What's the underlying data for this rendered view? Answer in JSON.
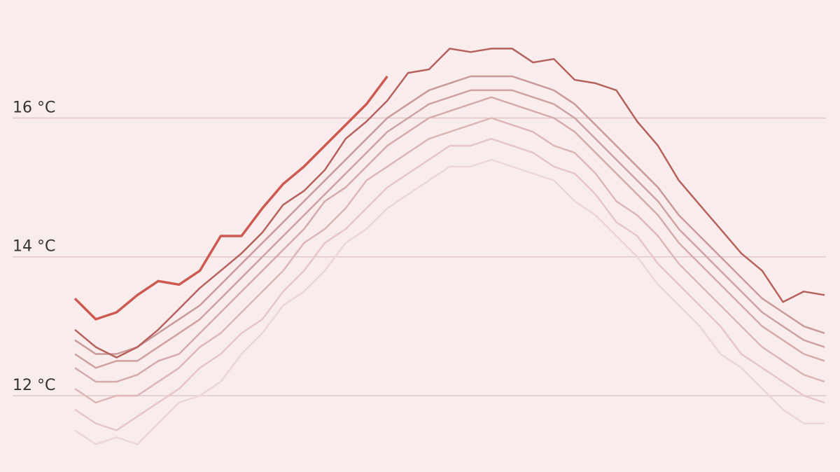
{
  "chart_data": {
    "type": "line",
    "categories": [
      null,
      null,
      null,
      null,
      null,
      null,
      null,
      null,
      null,
      null,
      null,
      null,
      null,
      null,
      null,
      null,
      null,
      null,
      null,
      null,
      null,
      null,
      null,
      null,
      null,
      null,
      null,
      null,
      null,
      null,
      null,
      null,
      null,
      null,
      null,
      null,
      null
    ],
    "ylim": [
      10.9,
      17.7
    ],
    "yticks": [
      {
        "value": 12,
        "label": "12 °C"
      },
      {
        "value": 14,
        "label": "14 °C"
      },
      {
        "value": 16,
        "label": "16 °C"
      }
    ],
    "grid": true,
    "series": [
      {
        "color": "#edd6d6",
        "values": [
          11.5,
          11.3,
          11.4,
          11.3,
          11.6,
          11.9,
          12.0,
          12.2,
          12.6,
          12.9,
          13.3,
          13.5,
          13.8,
          14.2,
          14.4,
          14.7,
          14.9,
          15.1,
          15.3,
          15.3,
          15.4,
          15.3,
          15.2,
          15.1,
          14.8,
          14.6,
          14.3,
          14.0,
          13.6,
          13.3,
          13.0,
          12.6,
          12.4,
          12.1,
          11.8,
          11.6,
          11.6
        ]
      },
      {
        "color": "#e6c6c6",
        "values": [
          11.8,
          11.6,
          11.5,
          11.7,
          11.9,
          12.1,
          12.4,
          12.6,
          12.9,
          13.1,
          13.5,
          13.8,
          14.2,
          14.4,
          14.7,
          15.0,
          15.2,
          15.4,
          15.6,
          15.6,
          15.7,
          15.6,
          15.5,
          15.3,
          15.2,
          14.9,
          14.5,
          14.3,
          13.9,
          13.6,
          13.3,
          13.0,
          12.6,
          12.4,
          12.2,
          12.0,
          11.9
        ]
      },
      {
        "color": "#ddb6b6",
        "values": [
          12.1,
          11.9,
          12.0,
          12.0,
          12.2,
          12.4,
          12.7,
          12.9,
          13.2,
          13.5,
          13.8,
          14.2,
          14.4,
          14.7,
          15.1,
          15.3,
          15.5,
          15.7,
          15.8,
          15.9,
          16.0,
          15.9,
          15.8,
          15.6,
          15.5,
          15.2,
          14.8,
          14.6,
          14.3,
          13.9,
          13.6,
          13.3,
          13.0,
          12.7,
          12.5,
          12.3,
          12.2
        ]
      },
      {
        "color": "#d6aaaa",
        "values": [
          12.4,
          12.2,
          12.2,
          12.3,
          12.5,
          12.6,
          12.9,
          13.2,
          13.5,
          13.8,
          14.1,
          14.4,
          14.8,
          15.0,
          15.3,
          15.6,
          15.8,
          16.0,
          16.1,
          16.2,
          16.3,
          16.2,
          16.1,
          16.0,
          15.8,
          15.5,
          15.2,
          14.9,
          14.6,
          14.2,
          13.9,
          13.6,
          13.3,
          13.0,
          12.8,
          12.6,
          12.5
        ]
      },
      {
        "color": "#d0a1a1",
        "values": [
          12.6,
          12.4,
          12.5,
          12.5,
          12.7,
          12.9,
          13.1,
          13.4,
          13.7,
          14.0,
          14.3,
          14.6,
          14.9,
          15.2,
          15.5,
          15.8,
          16.0,
          16.2,
          16.3,
          16.4,
          16.4,
          16.4,
          16.3,
          16.2,
          16.0,
          15.7,
          15.4,
          15.1,
          14.8,
          14.4,
          14.1,
          13.8,
          13.5,
          13.2,
          13.0,
          12.8,
          12.7
        ]
      },
      {
        "color": "#ca9999",
        "values": [
          12.8,
          12.6,
          12.6,
          12.7,
          12.9,
          13.1,
          13.3,
          13.6,
          13.9,
          14.2,
          14.5,
          14.8,
          15.1,
          15.4,
          15.7,
          16.0,
          16.2,
          16.4,
          16.5,
          16.6,
          16.6,
          16.6,
          16.5,
          16.4,
          16.2,
          15.9,
          15.6,
          15.3,
          15.0,
          14.6,
          14.3,
          14.0,
          13.7,
          13.4,
          13.2,
          13.0,
          12.9
        ]
      },
      {
        "color": "#b5625d",
        "values": [
          12.95,
          12.7,
          12.55,
          12.7,
          12.95,
          13.25,
          13.55,
          13.8,
          14.05,
          14.35,
          14.75,
          14.95,
          15.25,
          15.7,
          15.95,
          16.25,
          16.65,
          16.7,
          17.0,
          16.95,
          17.0,
          17.0,
          16.8,
          16.85,
          16.55,
          16.5,
          16.4,
          15.95,
          15.6,
          15.1,
          14.75,
          14.4,
          14.05,
          13.8,
          13.35,
          13.5,
          13.45
        ]
      },
      {
        "color": "#cc5a52",
        "values": [
          13.4,
          13.1,
          13.2,
          13.45,
          13.65,
          13.6,
          13.8,
          14.3,
          14.3,
          14.7,
          15.05,
          15.3,
          15.6,
          15.9,
          16.2,
          16.6,
          null,
          null,
          null,
          null,
          null,
          null,
          null,
          null,
          null,
          null,
          null,
          null,
          null,
          null,
          null,
          null,
          null,
          null,
          null,
          null,
          null
        ]
      }
    ]
  }
}
